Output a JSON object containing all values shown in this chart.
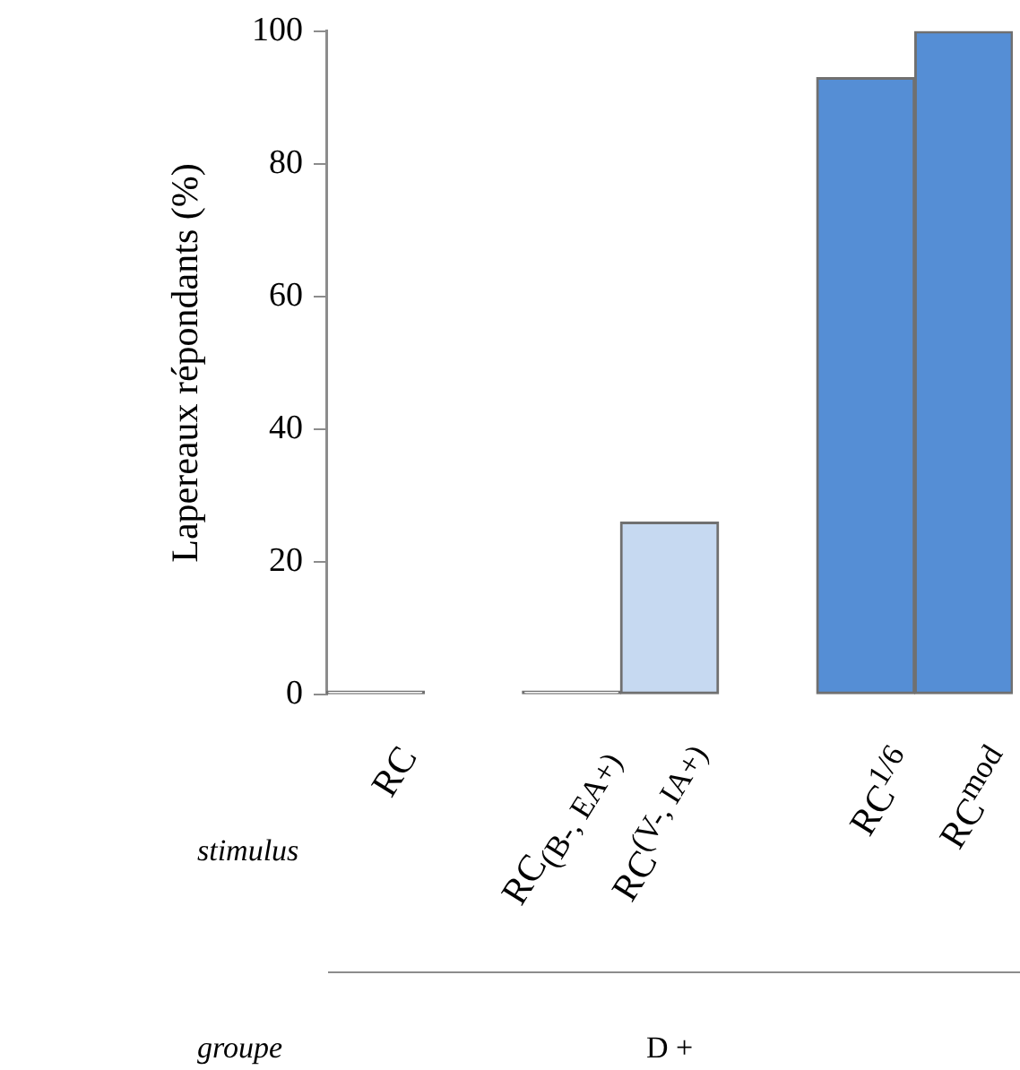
{
  "chart_data": {
    "type": "bar",
    "ylabel": "Lapereaux répondants (%)",
    "categories": [
      "RC",
      null,
      "RC$_{(B-, EA+)}$",
      "RC$^{(V-, IA+)}$",
      null,
      "RC$^{1/6}$",
      "RC$^{mod}$"
    ],
    "values": [
      0,
      null,
      0,
      26,
      null,
      93,
      100
    ],
    "colors": [
      "#ffffff",
      null,
      "#ffffff",
      "#c6d9f1",
      null,
      "#558ed5",
      "#558ed5"
    ],
    "ylim": [
      0,
      100
    ],
    "yticks": [
      0,
      20,
      40,
      60,
      80,
      100
    ],
    "grid": false,
    "legend": false,
    "annotations": [
      "stimulus",
      "groupe",
      "D +"
    ]
  }
}
